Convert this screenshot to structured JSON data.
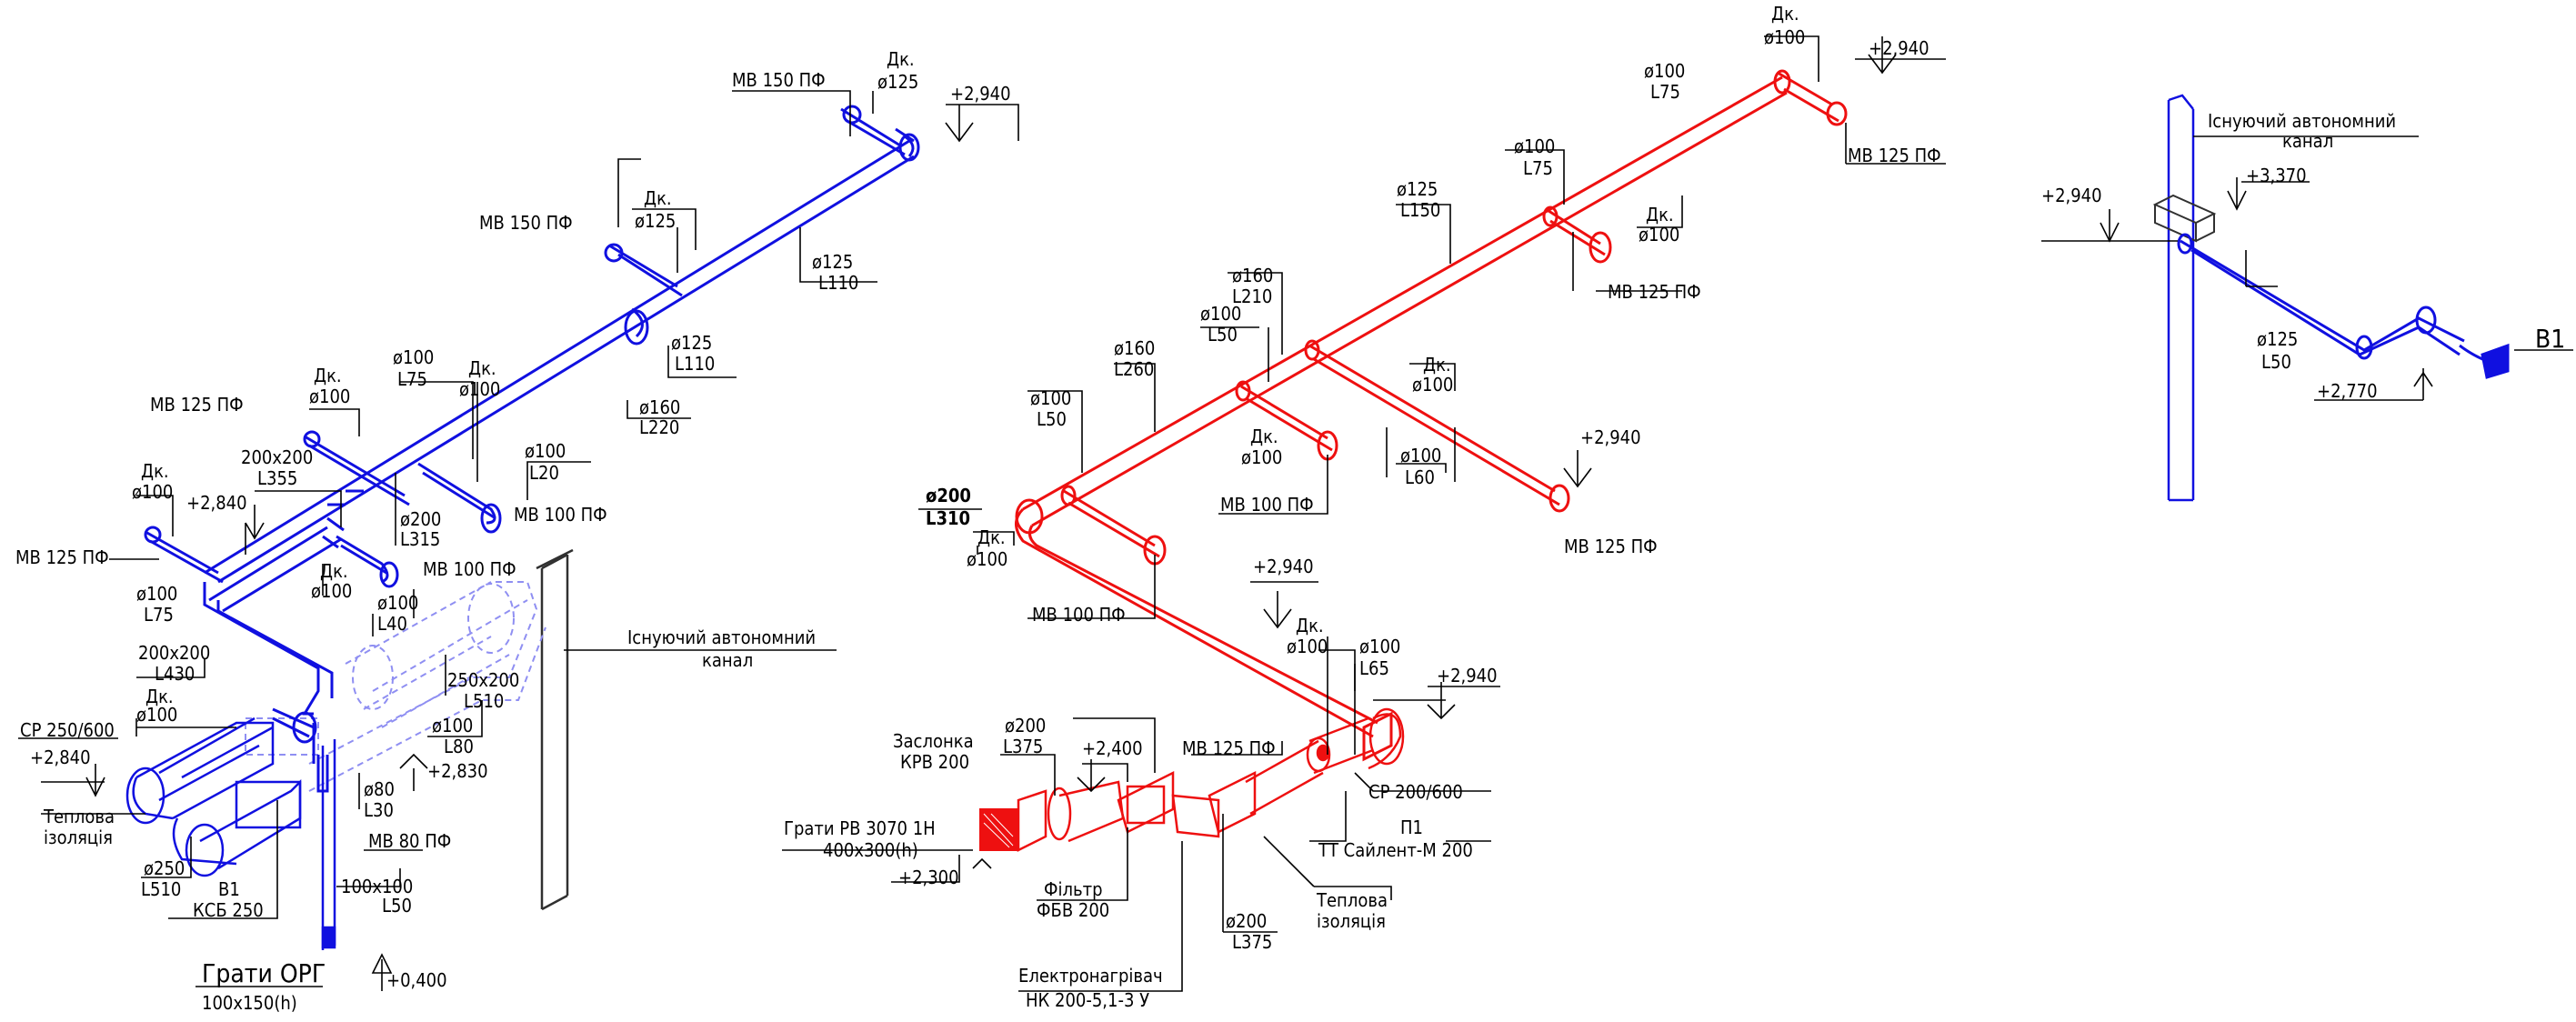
{
  "colors": {
    "supply": "#ee1010",
    "exhaust": "#1010e0",
    "annotation": "#000000",
    "ghost": "#8f8ff2"
  },
  "system_b1": {
    "labels": [
      {
        "text": "МВ 150 ПФ"
      },
      {
        "text": "Дк."
      },
      {
        "text": "ø125"
      },
      {
        "text": "+2,940"
      },
      {
        "text": "МВ 150 ПФ"
      },
      {
        "text": "Дк."
      },
      {
        "text": "ø125"
      },
      {
        "text": "ø125"
      },
      {
        "text": "L110"
      },
      {
        "text": "ø125"
      },
      {
        "text": "L110"
      },
      {
        "text": "ø160"
      },
      {
        "text": "L220"
      },
      {
        "text": "МВ 125 ПФ"
      },
      {
        "text": "Дк."
      },
      {
        "text": "ø100"
      },
      {
        "text": "ø100"
      },
      {
        "text": "L75"
      },
      {
        "text": "Дк."
      },
      {
        "text": "ø100"
      },
      {
        "text": "ø100"
      },
      {
        "text": "L20"
      },
      {
        "text": "МВ 100 ПФ"
      },
      {
        "text": "200x200"
      },
      {
        "text": "L355"
      },
      {
        "text": "ø200"
      },
      {
        "text": "L315"
      },
      {
        "text": "Дк."
      },
      {
        "text": "ø100"
      },
      {
        "text": "+2,840"
      },
      {
        "text": "МВ 125 ПФ"
      },
      {
        "text": "Дк."
      },
      {
        "text": "ø100"
      },
      {
        "text": "МВ 100 ПФ"
      },
      {
        "text": "ø100"
      },
      {
        "text": "L75"
      },
      {
        "text": "ø100"
      },
      {
        "text": "L40"
      },
      {
        "text": "200x200"
      },
      {
        "text": "L430"
      },
      {
        "text": "Дк."
      },
      {
        "text": "ø100"
      },
      {
        "text": "СР 250/600"
      },
      {
        "text": "+2,840"
      },
      {
        "text": "Теплова"
      },
      {
        "text": "ізоляція"
      },
      {
        "text": "ø250"
      },
      {
        "text": "L510"
      },
      {
        "text": "В1"
      },
      {
        "text": "КСБ 250"
      },
      {
        "text": "ø100"
      },
      {
        "text": "L80"
      },
      {
        "text": "+2,830"
      },
      {
        "text": "ø80"
      },
      {
        "text": "L30"
      },
      {
        "text": "МВ 80 ПФ"
      },
      {
        "text": "100x100"
      },
      {
        "text": "L50"
      },
      {
        "text": "Грати ОРГ"
      },
      {
        "text": "100x150(h)"
      },
      {
        "text": "+0,400"
      },
      {
        "text": "250x200"
      },
      {
        "text": "L510"
      },
      {
        "text": "Існуючий автономний"
      },
      {
        "text": "канал"
      }
    ]
  },
  "system_p1": {
    "labels": [
      {
        "text": "Дк."
      },
      {
        "text": "ø100"
      },
      {
        "text": "+2,940"
      },
      {
        "text": "ø100"
      },
      {
        "text": "L75"
      },
      {
        "text": "МВ 125 ПФ"
      },
      {
        "text": "ø100"
      },
      {
        "text": "L75"
      },
      {
        "text": "ø125"
      },
      {
        "text": "L150"
      },
      {
        "text": "Дк."
      },
      {
        "text": "ø100"
      },
      {
        "text": "МВ 125 ПФ"
      },
      {
        "text": "ø160"
      },
      {
        "text": "L210"
      },
      {
        "text": "ø100"
      },
      {
        "text": "L50"
      },
      {
        "text": "ø160"
      },
      {
        "text": "L260"
      },
      {
        "text": "Дк."
      },
      {
        "text": "ø100"
      },
      {
        "text": "ø100"
      },
      {
        "text": "L50"
      },
      {
        "text": "Дк."
      },
      {
        "text": "ø100"
      },
      {
        "text": "ø100"
      },
      {
        "text": "L60"
      },
      {
        "text": "+2,940"
      },
      {
        "text": "МВ 100 ПФ"
      },
      {
        "text": "МВ 125 ПФ"
      },
      {
        "text": "ø200"
      },
      {
        "text": "L310"
      },
      {
        "text": "Дк."
      },
      {
        "text": "ø100"
      },
      {
        "text": "+2,940"
      },
      {
        "text": "МВ 100 ПФ"
      },
      {
        "text": "Дк."
      },
      {
        "text": "ø100"
      },
      {
        "text": "ø100"
      },
      {
        "text": "L65"
      },
      {
        "text": "+2,940"
      },
      {
        "text": "Заслонка"
      },
      {
        "text": "КРВ 200"
      },
      {
        "text": "ø200"
      },
      {
        "text": "L375"
      },
      {
        "text": "+2,400"
      },
      {
        "text": "МВ 125 ПФ"
      },
      {
        "text": "СР 200/600"
      },
      {
        "text": "П1"
      },
      {
        "text": "ТТ Сайлент-М 200"
      },
      {
        "text": "Грати РВ 3070 1Н"
      },
      {
        "text": "400x300(h)"
      },
      {
        "text": "+2,300"
      },
      {
        "text": "Фільтр"
      },
      {
        "text": "ФБВ 200"
      },
      {
        "text": "ø200"
      },
      {
        "text": "L375"
      },
      {
        "text": "Теплова"
      },
      {
        "text": "ізоляція"
      },
      {
        "text": "Електронагрівач"
      },
      {
        "text": "НК 200-5,1-3 У"
      }
    ]
  },
  "system_b1_right": {
    "labels": [
      {
        "text": "Існуючий автономний"
      },
      {
        "text": "канал"
      },
      {
        "text": "+2,940"
      },
      {
        "text": "+3,370"
      },
      {
        "text": "ø125"
      },
      {
        "text": "L50"
      },
      {
        "text": "+2,770"
      },
      {
        "text": "В1"
      }
    ]
  }
}
